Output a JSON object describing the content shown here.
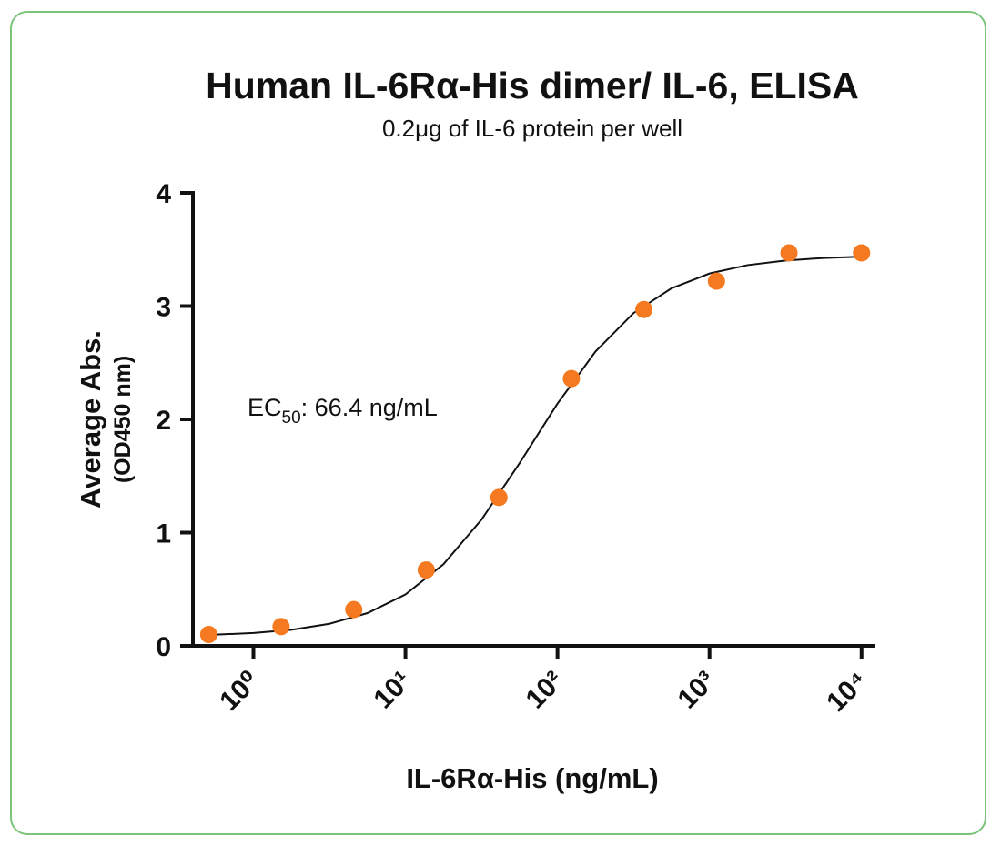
{
  "chart_data": {
    "type": "scatter",
    "title": "Human IL-6Rα-His dimer/ IL-6, ELISA",
    "subtitle": "0.2μg of IL-6 protein per well",
    "x_label": "IL-6Rα-His  (ng/mL)",
    "y_label": [
      "Average Abs.",
      "(OD450 nm)"
    ],
    "annotation": {
      "text": "EC",
      "sub": "50",
      "rest": ": 66.4 ng/mL"
    },
    "x_log": true,
    "x": [
      0.508,
      1.52,
      4.57,
      13.7,
      41.2,
      123.5,
      370,
      1111,
      3333,
      10000
    ],
    "series": [
      {
        "color": "#f47920",
        "values": [
          0.1,
          0.17,
          0.32,
          0.67,
          1.31,
          2.36,
          2.97,
          3.22,
          3.47,
          3.47
        ]
      }
    ],
    "curve": {
      "color": "#111111",
      "x": [
        0.501,
        1,
        1.778,
        3.162,
        5.623,
        10,
        17.78,
        31.62,
        56.23,
        100,
        177.8,
        316.2,
        562.3,
        1000,
        1778,
        3162,
        5623,
        10000
      ],
      "values": [
        0.096,
        0.113,
        0.142,
        0.195,
        0.289,
        0.454,
        0.721,
        1.114,
        1.612,
        2.139,
        2.599,
        2.938,
        3.157,
        3.288,
        3.362,
        3.403,
        3.425,
        3.437
      ]
    },
    "xlim": [
      0.4,
      12000
    ],
    "ylim": [
      0,
      4
    ],
    "xticks": [
      {
        "value": 1,
        "label": "10⁰"
      },
      {
        "value": 10,
        "label": "10¹"
      },
      {
        "value": 100,
        "label": "10²"
      },
      {
        "value": 1000,
        "label": "10³"
      },
      {
        "value": 10000,
        "label": "10⁴"
      }
    ],
    "yticks": [
      0,
      1,
      2,
      3,
      4
    ]
  }
}
